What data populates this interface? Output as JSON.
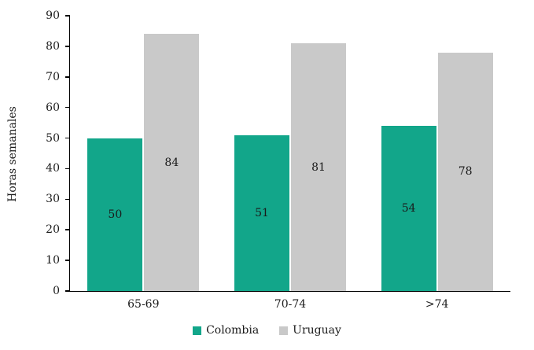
{
  "chart_data": {
    "type": "bar",
    "title": "",
    "xlabel": "",
    "ylabel": "Horas semanales",
    "ylim": [
      0,
      90
    ],
    "ytick_step": 10,
    "grid": false,
    "show_data_labels": true,
    "legend_position": "bottom",
    "categories": [
      "65-69",
      "70-74",
      ">74"
    ],
    "series": [
      {
        "name": "Colombia",
        "color": "#12A68A",
        "values": [
          50,
          51,
          54
        ]
      },
      {
        "name": "Uruguay",
        "color": "#C9C9C9",
        "values": [
          84,
          81,
          78
        ]
      }
    ]
  }
}
